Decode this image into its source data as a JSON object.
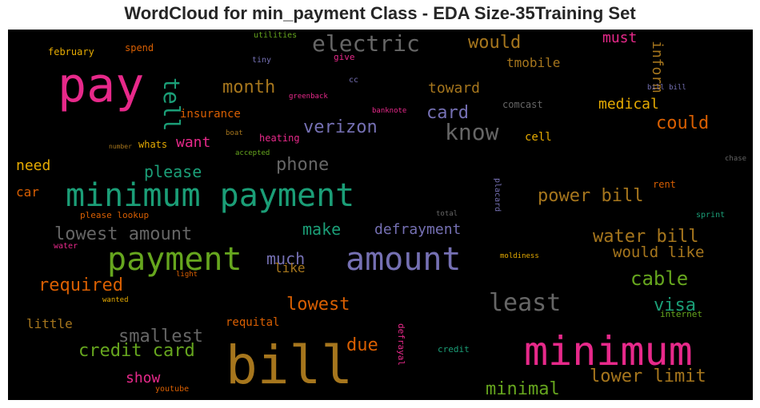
{
  "title": "WordCloud for min_payment Class - EDA Size-35Training Set",
  "chart_data": {
    "type": "wordcloud",
    "title": "WordCloud for min_payment Class - EDA Size-35Training Set",
    "background": "#000000",
    "words": [
      {
        "text": "bill",
        "color": "#a6761d"
      },
      {
        "text": "minimum",
        "color": "#e7298a"
      },
      {
        "text": "pay",
        "color": "#e7298a"
      },
      {
        "text": "minimum payment",
        "color": "#1b9e77"
      },
      {
        "text": "payment",
        "color": "#66a61e"
      },
      {
        "text": "amount",
        "color": "#7570b3"
      },
      {
        "text": "electric",
        "color": "#666666"
      },
      {
        "text": "least",
        "color": "#666666"
      },
      {
        "text": "know",
        "color": "#666666"
      },
      {
        "text": "tell",
        "color": "#1b9e77"
      },
      {
        "text": "lowest amount",
        "color": "#666666"
      },
      {
        "text": "lowest",
        "color": "#d95f02"
      },
      {
        "text": "cable",
        "color": "#66a61e"
      },
      {
        "text": "phone",
        "color": "#666666"
      },
      {
        "text": "credit card",
        "color": "#66a61e"
      },
      {
        "text": "smallest",
        "color": "#666666"
      },
      {
        "text": "lower limit",
        "color": "#a6761d"
      },
      {
        "text": "due",
        "color": "#d95f02"
      },
      {
        "text": "month",
        "color": "#a6761d"
      },
      {
        "text": "water bill",
        "color": "#a6761d"
      },
      {
        "text": "power bill",
        "color": "#a6761d"
      },
      {
        "text": "verizon",
        "color": "#7570b3"
      },
      {
        "text": "card",
        "color": "#7570b3"
      },
      {
        "text": "would",
        "color": "#a6761d"
      },
      {
        "text": "could",
        "color": "#d95f02"
      },
      {
        "text": "required",
        "color": "#d95f02"
      },
      {
        "text": "would like",
        "color": "#a6761d"
      },
      {
        "text": "minimal",
        "color": "#66a61e"
      },
      {
        "text": "visa",
        "color": "#1b9e77"
      },
      {
        "text": "please",
        "color": "#1b9e77"
      },
      {
        "text": "much",
        "color": "#7570b3"
      },
      {
        "text": "make",
        "color": "#1b9e77"
      },
      {
        "text": "defrayment",
        "color": "#7570b3"
      },
      {
        "text": "toward",
        "color": "#a6761d"
      },
      {
        "text": "medical",
        "color": "#e6ab02"
      },
      {
        "text": "must",
        "color": "#e7298a"
      },
      {
        "text": "inform",
        "color": "#a6761d"
      },
      {
        "text": "tmobile",
        "color": "#a6761d"
      },
      {
        "text": "need",
        "color": "#e6ab02"
      },
      {
        "text": "want",
        "color": "#e7298a"
      },
      {
        "text": "like",
        "color": "#a6761d"
      },
      {
        "text": "show",
        "color": "#e7298a"
      },
      {
        "text": "car",
        "color": "#d95f02"
      },
      {
        "text": "insurance",
        "color": "#d95f02"
      },
      {
        "text": "requital",
        "color": "#d95f02"
      },
      {
        "text": "little",
        "color": "#a6761d"
      },
      {
        "text": "cell",
        "color": "#e6ab02"
      },
      {
        "text": "whats",
        "color": "#e6ab02"
      },
      {
        "text": "heating",
        "color": "#e7298a"
      },
      {
        "text": "comcast",
        "color": "#666666"
      },
      {
        "text": "rent",
        "color": "#d95f02"
      },
      {
        "text": "internet",
        "color": "#66a61e"
      },
      {
        "text": "credit",
        "color": "#1b9e77"
      },
      {
        "text": "defrayal",
        "color": "#e7298a"
      },
      {
        "text": "february",
        "color": "#e6ab02"
      },
      {
        "text": "spend",
        "color": "#d95f02"
      },
      {
        "text": "give",
        "color": "#e7298a"
      },
      {
        "text": "utilities",
        "color": "#66a61e"
      },
      {
        "text": "tiny",
        "color": "#7570b3"
      },
      {
        "text": "cc",
        "color": "#7570b3"
      },
      {
        "text": "greenback",
        "color": "#e7298a"
      },
      {
        "text": "banknote",
        "color": "#e7298a"
      },
      {
        "text": "boat",
        "color": "#a6761d"
      },
      {
        "text": "accepted",
        "color": "#66a61e"
      },
      {
        "text": "number",
        "color": "#a6761d"
      },
      {
        "text": "please lookup",
        "color": "#d95f02"
      },
      {
        "text": "placard",
        "color": "#7570b3"
      },
      {
        "text": "total",
        "color": "#666666"
      },
      {
        "text": "sprint",
        "color": "#1b9e77"
      },
      {
        "text": "moldiness",
        "color": "#e6ab02"
      },
      {
        "text": "water",
        "color": "#e7298a"
      },
      {
        "text": "light",
        "color": "#d95f02"
      },
      {
        "text": "wanted",
        "color": "#e6ab02"
      },
      {
        "text": "youtube",
        "color": "#d95f02"
      },
      {
        "text": "chase",
        "color": "#666666"
      },
      {
        "text": "bill bill",
        "color": "#7570b3"
      }
    ]
  }
}
